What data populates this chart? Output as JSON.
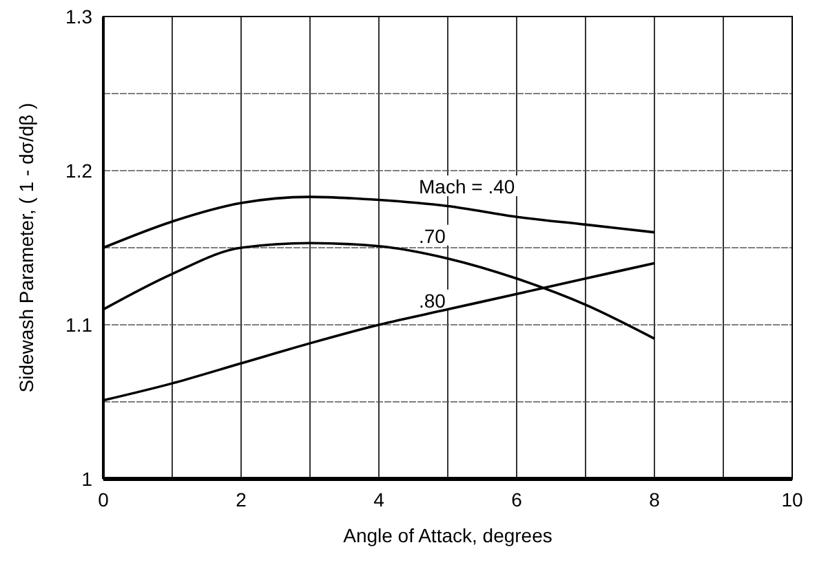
{
  "chart_data": {
    "type": "line",
    "xlabel": "Angle of Attack, degrees",
    "ylabel": "Sidewash Parameter, ( 1 - dσ/dβ )",
    "x": [
      0,
      1,
      2,
      3,
      4,
      5,
      6,
      7,
      8
    ],
    "series": [
      {
        "name": "Mach = .40",
        "color": "#000000",
        "values": [
          1.15,
          1.167,
          1.179,
          1.183,
          1.181,
          1.177,
          1.17,
          1.165,
          1.16
        ]
      },
      {
        "name": ".70",
        "color": "#000000",
        "values": [
          1.11,
          1.133,
          1.15,
          1.153,
          1.151,
          1.143,
          1.13,
          1.113,
          1.091
        ]
      },
      {
        "name": ".80",
        "color": "#000000",
        "values": [
          1.051,
          1.062,
          1.075,
          1.088,
          1.1,
          1.11,
          1.12,
          1.13,
          1.14
        ]
      }
    ],
    "xlim": [
      0,
      10
    ],
    "ylim": [
      1,
      1.3
    ],
    "xticks": [
      0,
      {
        "value": 1,
        "label": null
      },
      2,
      {
        "value": 3,
        "label": null
      },
      4,
      {
        "value": 5,
        "label": null
      },
      6,
      {
        "value": 7,
        "label": null
      },
      8,
      {
        "value": 9,
        "label": null
      },
      10
    ],
    "yticks": [
      1,
      {
        "value": 1.05,
        "label": null
      },
      1.1,
      {
        "value": 1.15,
        "label": null
      },
      1.2,
      {
        "value": 1.25,
        "label": null
      },
      1.3
    ],
    "grid": true,
    "marker": "none",
    "line_style": "solid"
  }
}
